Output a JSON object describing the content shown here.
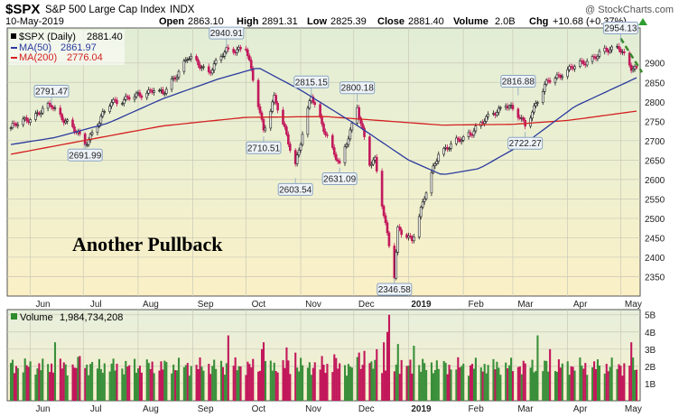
{
  "header": {
    "symbol": "$SPX",
    "name": "S&P 500 Large Cap Index",
    "exchange": "INDX",
    "date": "10-May-2019",
    "open_label": "Open",
    "open": "2863.10",
    "high_label": "High",
    "high": "2891.31",
    "low_label": "Low",
    "low": "2825.39",
    "close_label": "Close",
    "close": "2881.40",
    "volume_label": "Volume",
    "volume": "2.0B",
    "chg_label": "Chg",
    "chg": "+10.68 (+0.37%)",
    "watermark": "@ StockCharts.com",
    "arrow_icon": "green-up-arrow-icon"
  },
  "legend": [
    {
      "label": "$SPX (Daily)",
      "value": "2881.40",
      "color": "#000000"
    },
    {
      "label": "MA(50)",
      "value": "2861.97",
      "color": "#2b3a9e"
    },
    {
      "label": "MA(200)",
      "value": "2776.04",
      "color": "#d42020"
    }
  ],
  "volume_legend": {
    "label": "Volume",
    "value": "1,984,734,208"
  },
  "annotation_text": "Another Pullback",
  "chart_data": {
    "type": "candlestick",
    "title": "$SPX S&P 500 Large Cap Index",
    "x_range": [
      "2018-05-21",
      "2019-05-10"
    ],
    "ylim": [
      2300,
      2990
    ],
    "y_ticks": [
      2350,
      2400,
      2450,
      2500,
      2550,
      2600,
      2650,
      2700,
      2750,
      2800,
      2850,
      2900
    ],
    "month_labels": [
      "Jun",
      "Jul",
      "Aug",
      "Sep",
      "Oct",
      "Nov",
      "Dec",
      "2019",
      "Feb",
      "Mar",
      "Apr",
      "May"
    ],
    "month_dates": [
      "2018-06-01",
      "2018-07-01",
      "2018-08-01",
      "2018-09-01",
      "2018-10-01",
      "2018-11-01",
      "2018-12-01",
      "2019-01-01",
      "2019-02-01",
      "2019-03-01",
      "2019-04-01",
      "2019-05-01"
    ],
    "price_path": [
      [
        "2018-05-21",
        2733
      ],
      [
        "2018-06-06",
        2772
      ],
      [
        "2018-06-13",
        2791
      ],
      [
        "2018-06-28",
        2716
      ],
      [
        "2018-07-02",
        2692
      ],
      [
        "2018-07-17",
        2800
      ],
      [
        "2018-08-01",
        2815
      ],
      [
        "2018-08-10",
        2834
      ],
      [
        "2018-08-15",
        2818
      ],
      [
        "2018-08-29",
        2914
      ],
      [
        "2018-09-10",
        2878
      ],
      [
        "2018-09-20",
        2931
      ],
      [
        "2018-10-01",
        2940
      ],
      [
        "2018-10-11",
        2729
      ],
      [
        "2018-10-17",
        2810
      ],
      [
        "2018-10-29",
        2641
      ],
      [
        "2018-11-07",
        2813
      ],
      [
        "2018-11-23",
        2632
      ],
      [
        "2018-12-03",
        2790
      ],
      [
        "2018-12-10",
        2637
      ],
      [
        "2018-12-13",
        2650
      ],
      [
        "2018-12-24",
        2351
      ],
      [
        "2018-12-26",
        2467
      ],
      [
        "2019-01-03",
        2448
      ],
      [
        "2019-01-18",
        2671
      ],
      [
        "2019-02-01",
        2706
      ],
      [
        "2019-02-25",
        2796
      ],
      [
        "2019-03-08",
        2743
      ],
      [
        "2019-03-21",
        2854
      ],
      [
        "2019-04-12",
        2907
      ],
      [
        "2019-04-30",
        2945
      ],
      [
        "2019-05-07",
        2884
      ],
      [
        "2019-05-10",
        2881
      ]
    ],
    "ma50_path": [
      [
        "2018-05-21",
        2690
      ],
      [
        "2018-06-15",
        2708
      ],
      [
        "2018-07-15",
        2745
      ],
      [
        "2018-08-15",
        2808
      ],
      [
        "2018-09-15",
        2858
      ],
      [
        "2018-10-08",
        2888
      ],
      [
        "2018-11-01",
        2830
      ],
      [
        "2018-12-01",
        2745
      ],
      [
        "2019-01-01",
        2650
      ],
      [
        "2019-01-20",
        2612
      ],
      [
        "2019-02-10",
        2628
      ],
      [
        "2019-03-10",
        2700
      ],
      [
        "2019-04-05",
        2788
      ],
      [
        "2019-05-10",
        2862
      ]
    ],
    "ma200_path": [
      [
        "2018-05-21",
        2665
      ],
      [
        "2018-07-01",
        2700
      ],
      [
        "2018-08-15",
        2738
      ],
      [
        "2018-10-01",
        2760
      ],
      [
        "2018-11-15",
        2762
      ],
      [
        "2018-12-15",
        2752
      ],
      [
        "2019-01-20",
        2740
      ],
      [
        "2019-03-01",
        2742
      ],
      [
        "2019-04-01",
        2752
      ],
      [
        "2019-05-10",
        2776
      ]
    ],
    "annotations": [
      {
        "label": "2791.47",
        "date": "2018-06-13",
        "value": 2791.47,
        "position": "above"
      },
      {
        "label": "2691.99",
        "date": "2018-07-02",
        "value": 2691.99,
        "position": "below"
      },
      {
        "label": "2940.91",
        "date": "2018-09-20",
        "value": 2940.91,
        "position": "above"
      },
      {
        "label": "2710.51",
        "date": "2018-10-11",
        "value": 2710.51,
        "position": "below"
      },
      {
        "label": "2815.15",
        "date": "2018-11-07",
        "value": 2815.15,
        "position": "above"
      },
      {
        "label": "2603.54",
        "date": "2018-10-29",
        "value": 2603.54,
        "position": "below"
      },
      {
        "label": "2800.18",
        "date": "2018-12-03",
        "value": 2800.18,
        "position": "above"
      },
      {
        "label": "2631.09",
        "date": "2018-11-23",
        "value": 2631.09,
        "position": "below"
      },
      {
        "label": "2346.58",
        "date": "2018-12-24",
        "value": 2346.58,
        "position": "below"
      },
      {
        "label": "2816.88",
        "date": "2019-03-04",
        "value": 2816.88,
        "position": "above"
      },
      {
        "label": "2722.27",
        "date": "2019-03-08",
        "value": 2722.27,
        "position": "below"
      },
      {
        "label": "2954.13",
        "date": "2019-05-01",
        "value": 2954.13,
        "position": "above"
      }
    ],
    "trendline": {
      "from": [
        "2019-05-01",
        2954
      ],
      "to": [
        "2019-05-10",
        2876
      ],
      "color": "#3a8a2a",
      "style": "dashed"
    },
    "volume": {
      "ylim": [
        0,
        5.3
      ],
      "y_tick_labels": [
        "1B",
        "2B",
        "3B",
        "4B",
        "5B"
      ],
      "y_ticks": [
        1,
        2,
        3,
        4,
        5
      ],
      "typical": 2.0,
      "spikes": [
        [
          "2018-06-15",
          3.4
        ],
        [
          "2018-06-29",
          2.6
        ],
        [
          "2018-09-21",
          3.8
        ],
        [
          "2018-10-10",
          3.0
        ],
        [
          "2018-10-11",
          3.4
        ],
        [
          "2018-10-24",
          3.1
        ],
        [
          "2018-10-29",
          2.8
        ],
        [
          "2018-11-13",
          2.6
        ],
        [
          "2018-11-20",
          2.7
        ],
        [
          "2018-12-04",
          2.8
        ],
        [
          "2018-12-07",
          2.9
        ],
        [
          "2018-12-14",
          3.0
        ],
        [
          "2018-12-18",
          3.4
        ],
        [
          "2018-12-20",
          4.0
        ],
        [
          "2018-12-21",
          5.0
        ],
        [
          "2018-12-26",
          3.3
        ],
        [
          "2019-01-04",
          3.2
        ],
        [
          "2019-03-15",
          3.8
        ],
        [
          "2019-03-22",
          3.0
        ],
        [
          "2019-05-07",
          3.4
        ]
      ]
    },
    "colors": {
      "up": "#2e8b2e",
      "down": "#c2185b",
      "bg_top": "#e2edd6",
      "bg_bottom": "#fbf0c6"
    }
  }
}
